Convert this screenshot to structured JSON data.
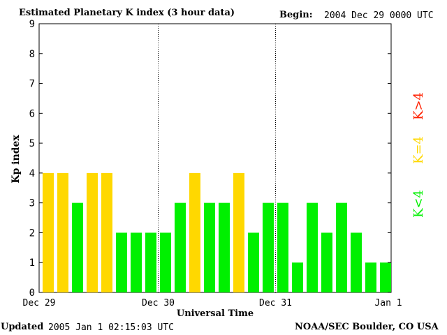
{
  "header": {
    "title": "Estimated Planetary K index (3 hour data)",
    "begin_label": "Begin:",
    "begin_value": "2004 Dec 29 0000 UTC"
  },
  "footer": {
    "updated_label": "Updated",
    "updated_value": "2005 Jan  1 02:15:03 UTC",
    "credit": "NOAA/SEC Boulder, CO USA"
  },
  "legend": {
    "high": "K>4",
    "mid": "K=4",
    "low": "K<4"
  },
  "colors": {
    "low": "#00f000",
    "mid": "#ffd800",
    "high": "#ff2000"
  },
  "chart_data": {
    "type": "bar",
    "title": "Estimated Planetary K index (3 hour data)",
    "xlabel": "Universal Time",
    "ylabel": "Kp index",
    "ylim": [
      0,
      9
    ],
    "yticks": [
      "0",
      "1",
      "2",
      "3",
      "4",
      "5",
      "6",
      "7",
      "8",
      "9"
    ],
    "xticks": [
      "Dec 29",
      "Dec 30",
      "Dec 31",
      "Jan 1"
    ],
    "day_dividers_after_bar": [
      8,
      16
    ],
    "values": [
      4,
      4,
      3,
      4,
      4,
      2,
      2,
      2,
      2,
      3,
      4,
      3,
      3,
      4,
      2,
      3,
      3,
      1,
      3,
      2,
      3,
      2,
      1,
      1
    ]
  }
}
